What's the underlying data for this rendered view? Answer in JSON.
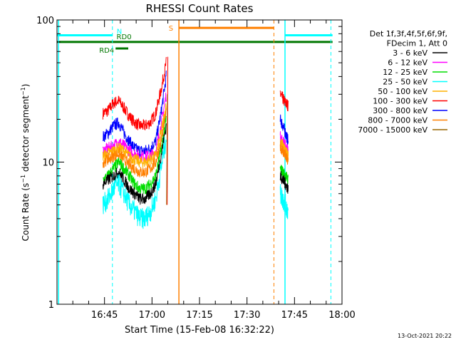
{
  "chart_data": {
    "type": "line",
    "title": "RHESSI Count Rates",
    "xlabel": "Start Time (15-Feb-08 16:32:22)",
    "ylabel_prefix": "Count Rate (s",
    "ylabel_sup": "−1",
    "ylabel_mid": " detector segment",
    "ylabel_sup2": "−1",
    "ylabel_suffix": ")",
    "yscale": "log",
    "ylim": [
      1,
      100
    ],
    "yticks": [
      {
        "value": 1,
        "label": "1"
      },
      {
        "value": 10,
        "label": "10"
      },
      {
        "value": 100,
        "label": "100"
      }
    ],
    "xlim_min": [
      -15,
      75
    ],
    "xticks": [
      {
        "min": 0,
        "label": "16:45"
      },
      {
        "min": 15,
        "label": "17:00"
      },
      {
        "min": 30,
        "label": "17:15"
      },
      {
        "min": 45,
        "label": "17:30"
      },
      {
        "min": 60,
        "label": "17:45"
      },
      {
        "min": 75,
        "label": "18:00"
      }
    ],
    "x_axis_origin": "16:45",
    "legend": {
      "placement": "right",
      "header": [
        "Det 1f,3f,4f,5f,6f,9f,",
        "FDecim 1, Att 0"
      ],
      "entries": [
        {
          "label": "3 - 6 keV",
          "color": "#000000"
        },
        {
          "label": "6 - 12 keV",
          "color": "#ff00ff"
        },
        {
          "label": "12 - 25 keV",
          "color": "#00dd00"
        },
        {
          "label": "25 - 50 keV",
          "color": "#00ffff"
        },
        {
          "label": "50 - 100 keV",
          "color": "#ffb000"
        },
        {
          "label": "100 - 300 keV",
          "color": "#ff0000"
        },
        {
          "label": "300 - 800 keV",
          "color": "#0000ff"
        },
        {
          "label": "800 - 7000 keV",
          "color": "#ff8000"
        },
        {
          "label": "7000 - 15000 keV",
          "color": "#996600"
        }
      ]
    },
    "series": [
      {
        "name": "100 - 300 keV",
        "color": "#ff0000",
        "segA": [
          22,
          23,
          26,
          27,
          24,
          21,
          19,
          18,
          18,
          19,
          22,
          32,
          50
        ],
        "segB": [
          30,
          28,
          26,
          25
        ]
      },
      {
        "name": "300 - 800 keV",
        "color": "#0000ff",
        "segA": [
          15,
          16,
          18,
          19,
          16,
          14,
          12.5,
          12,
          12,
          12.5,
          14,
          22,
          40
        ],
        "segB": [
          20,
          18,
          16,
          14
        ]
      },
      {
        "name": "6 - 12 keV",
        "color": "#ff00ff",
        "segA": [
          12,
          12.5,
          13,
          14,
          13,
          12,
          11.5,
          11,
          11,
          11,
          12,
          18,
          30
        ],
        "segB": [
          15,
          14,
          13,
          12
        ]
      },
      {
        "name": "50 - 100 keV",
        "color": "#ffb000",
        "segA": [
          11,
          11.5,
          12,
          12.5,
          12,
          11,
          10.5,
          10,
          10,
          10.5,
          11,
          16,
          25
        ],
        "segB": [
          14,
          13,
          12,
          11
        ]
      },
      {
        "name": "800 - 7000 keV",
        "color": "#ff8000",
        "segA": [
          10,
          10.5,
          11,
          11.5,
          10.5,
          9.5,
          9,
          8.5,
          8.5,
          9,
          10,
          14,
          22
        ],
        "segB": [
          13,
          12,
          11,
          10
        ]
      },
      {
        "name": "12 - 25 keV",
        "color": "#00dd00",
        "segA": [
          7.5,
          8,
          9,
          10,
          9,
          8,
          7,
          6.5,
          6.5,
          7,
          8,
          12,
          20
        ],
        "segB": [
          9,
          8.5,
          8,
          7.5
        ]
      },
      {
        "name": "3 - 6 keV",
        "color": "#000000",
        "segA": [
          7,
          7.5,
          8,
          8.5,
          7.5,
          6.5,
          6,
          5.5,
          5.5,
          6,
          7,
          11,
          18
        ],
        "segB": [
          8,
          7.5,
          7,
          6.5
        ]
      },
      {
        "name": "25 - 50 keV",
        "color": "#00ffff",
        "segA": [
          5,
          5.5,
          6.5,
          7,
          6,
          5,
          4.5,
          4,
          4,
          4.5,
          5.5,
          9,
          15
        ],
        "segB": [
          6,
          5.5,
          5,
          4.5
        ]
      }
    ],
    "segA_x_min": [
      -0.5,
      19.5
    ],
    "segB_x_min": [
      55.5,
      58
    ],
    "spike_x_min": [
      19.8,
      20.0
    ],
    "attenuator_bars": [
      {
        "label": "N",
        "color": "#00ffff",
        "y": 78,
        "ranges": [
          [
            -15,
            2.5
          ],
          [
            57,
            72
          ]
        ]
      },
      {
        "label": "RD0",
        "color": "#007700",
        "y": 70,
        "ranges": [
          [
            -15,
            72
          ]
        ]
      },
      {
        "label": "RD4",
        "color": "#007700",
        "y": 63,
        "ranges": [
          [
            3.5,
            7.5
          ]
        ]
      },
      {
        "label": "S",
        "color": "#ff8000",
        "y": 88,
        "ranges": [
          [
            23.5,
            53.5
          ]
        ]
      }
    ],
    "vlines": [
      {
        "x": -14.5,
        "color": "#00ffff",
        "dash": false
      },
      {
        "x": 2.5,
        "color": "#00ffff",
        "dash": true
      },
      {
        "x": 23.5,
        "color": "#ff8000",
        "dash": false
      },
      {
        "x": 53.5,
        "color": "#ff8000",
        "dash": true
      },
      {
        "x": 57,
        "color": "#00ffff",
        "dash": false
      },
      {
        "x": 71.5,
        "color": "#00ffff",
        "dash": true
      }
    ],
    "grid": false,
    "timestamp": "13-Oct-2021 20:22"
  }
}
